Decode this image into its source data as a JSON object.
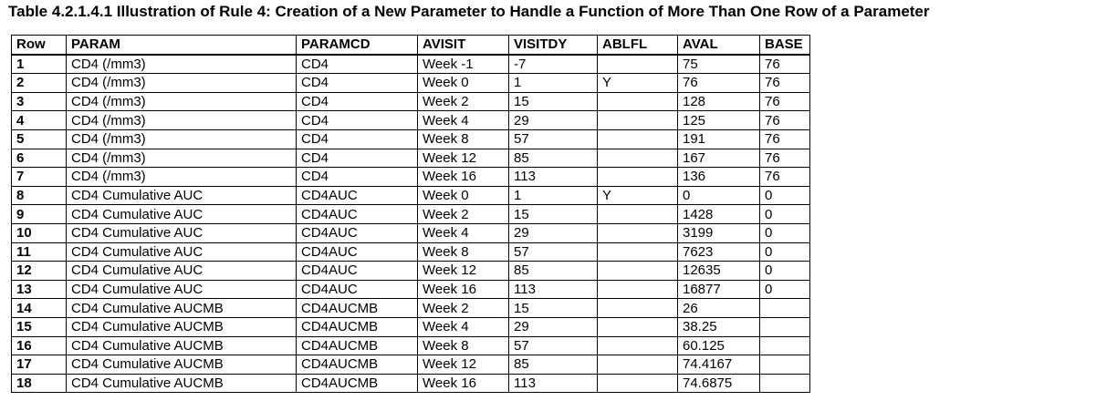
{
  "caption": "Table 4.2.1.4.1 Illustration of Rule 4: Creation of a New Parameter to Handle a Function of More Than One Row of a Parameter",
  "table": {
    "columns": [
      "Row",
      "PARAM",
      "PARAMCD",
      "AVISIT",
      "VISITDY",
      "ABLFL",
      "AVAL",
      "BASE"
    ],
    "rows": [
      [
        "1",
        "CD4 (/mm3)",
        "CD4",
        "Week -1",
        "-7",
        "",
        "75",
        "76"
      ],
      [
        "2",
        "CD4 (/mm3)",
        "CD4",
        "Week 0",
        "1",
        "Y",
        "76",
        "76"
      ],
      [
        "3",
        "CD4 (/mm3)",
        "CD4",
        "Week 2",
        "15",
        "",
        "128",
        "76"
      ],
      [
        "4",
        "CD4 (/mm3)",
        "CD4",
        "Week 4",
        "29",
        "",
        "125",
        "76"
      ],
      [
        "5",
        "CD4 (/mm3)",
        "CD4",
        "Week 8",
        "57",
        "",
        "191",
        "76"
      ],
      [
        "6",
        "CD4 (/mm3)",
        "CD4",
        "Week 12",
        "85",
        "",
        "167",
        "76"
      ],
      [
        "7",
        "CD4 (/mm3)",
        "CD4",
        "Week 16",
        "113",
        "",
        "136",
        "76"
      ],
      [
        "8",
        "CD4 Cumulative AUC",
        "CD4AUC",
        "Week 0",
        "1",
        "Y",
        "0",
        "0"
      ],
      [
        "9",
        "CD4 Cumulative AUC",
        "CD4AUC",
        "Week 2",
        "15",
        "",
        "1428",
        "0"
      ],
      [
        "10",
        "CD4 Cumulative AUC",
        "CD4AUC",
        "Week 4",
        "29",
        "",
        "3199",
        "0"
      ],
      [
        "11",
        "CD4 Cumulative AUC",
        "CD4AUC",
        "Week 8",
        "57",
        "",
        "7623",
        "0"
      ],
      [
        "12",
        "CD4 Cumulative AUC",
        "CD4AUC",
        "Week 12",
        "85",
        "",
        "12635",
        "0"
      ],
      [
        "13",
        "CD4 Cumulative AUC",
        "CD4AUC",
        "Week 16",
        "113",
        "",
        "16877",
        "0"
      ],
      [
        "14",
        "CD4 Cumulative AUCMB",
        "CD4AUCMB",
        "Week 2",
        "15",
        "",
        "26",
        ""
      ],
      [
        "15",
        "CD4 Cumulative AUCMB",
        "CD4AUCMB",
        "Week 4",
        "29",
        "",
        "38.25",
        ""
      ],
      [
        "16",
        "CD4 Cumulative AUCMB",
        "CD4AUCMB",
        "Week 8",
        "57",
        "",
        "60.125",
        ""
      ],
      [
        "17",
        "CD4 Cumulative AUCMB",
        "CD4AUCMB",
        "Week 12",
        "85",
        "",
        "74.4167",
        ""
      ],
      [
        "18",
        "CD4 Cumulative AUCMB",
        "CD4AUCMB",
        "Week 16",
        "113",
        "",
        "74.6875",
        ""
      ]
    ]
  }
}
